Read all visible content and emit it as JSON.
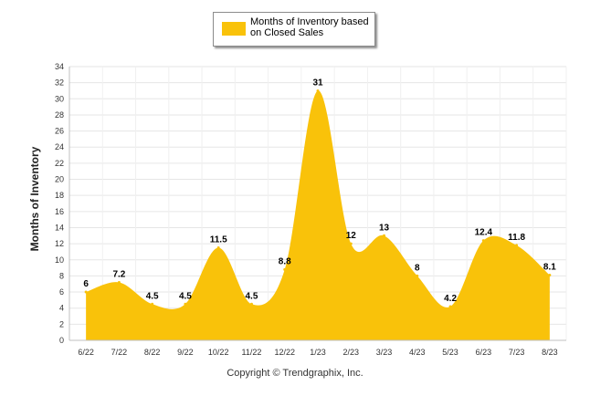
{
  "chart_data": {
    "type": "area",
    "categories": [
      "6/22",
      "7/22",
      "8/22",
      "9/22",
      "10/22",
      "11/22",
      "12/22",
      "1/23",
      "2/23",
      "3/23",
      "4/23",
      "5/23",
      "6/23",
      "7/23",
      "8/23"
    ],
    "series": [
      {
        "name": "Months of Inventory based on Closed Sales",
        "values": [
          6,
          7.2,
          4.5,
          4.5,
          11.5,
          4.5,
          8.8,
          31,
          12,
          13,
          8,
          4.2,
          12.4,
          11.8,
          8.1
        ],
        "labels": [
          "6",
          "7.2",
          "4.5",
          "4.5",
          "11.5",
          "4.5",
          "8.8",
          "31",
          "12",
          "13",
          "8",
          "4.2",
          "12.4",
          "11.8",
          "8.1"
        ]
      }
    ],
    "ylabel": "Months of Inventory",
    "xlabel": "",
    "ylim": [
      0,
      34
    ],
    "yticks": [
      0,
      2,
      4,
      6,
      8,
      10,
      12,
      14,
      16,
      18,
      20,
      22,
      24,
      26,
      28,
      30,
      32,
      34
    ],
    "grid": true,
    "legend_position": "top-center",
    "colors": {
      "fill": "#F9C20A",
      "grid": "#e6e6e6",
      "axis": "#c0c0c0"
    }
  },
  "legend": {
    "label": "Months of Inventory based on Closed Sales"
  },
  "footer": {
    "copyright": "Copyright © Trendgraphix, Inc."
  }
}
